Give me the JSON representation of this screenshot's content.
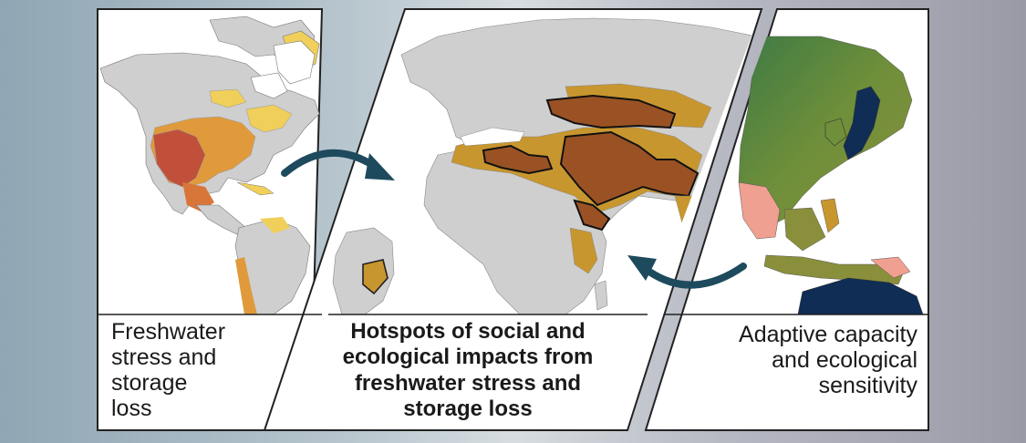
{
  "panels": {
    "left": {
      "caption_lines": [
        "Freshwater",
        "stress and",
        "storage",
        "loss"
      ]
    },
    "center": {
      "caption_lines": [
        "Hotspots of social and",
        "ecological impacts from",
        "freshwater stress and",
        "storage loss"
      ]
    },
    "right": {
      "caption_lines": [
        "Adaptive capacity",
        "and ecological",
        "sensitivity"
      ]
    }
  },
  "colors": {
    "land_gray": "#cfcfcf",
    "stress_yellow": "#f0cf5a",
    "stress_orange": "#e09a3c",
    "stress_red": "#c0503a",
    "hotspot_brown": "#9a5224",
    "hotspot_tan": "#c8962e",
    "arrow_teal": "#1e4a5e",
    "capacity_green": "#3d7a44",
    "capacity_navy": "#0f2d55",
    "capacity_pink": "#f0a090"
  }
}
